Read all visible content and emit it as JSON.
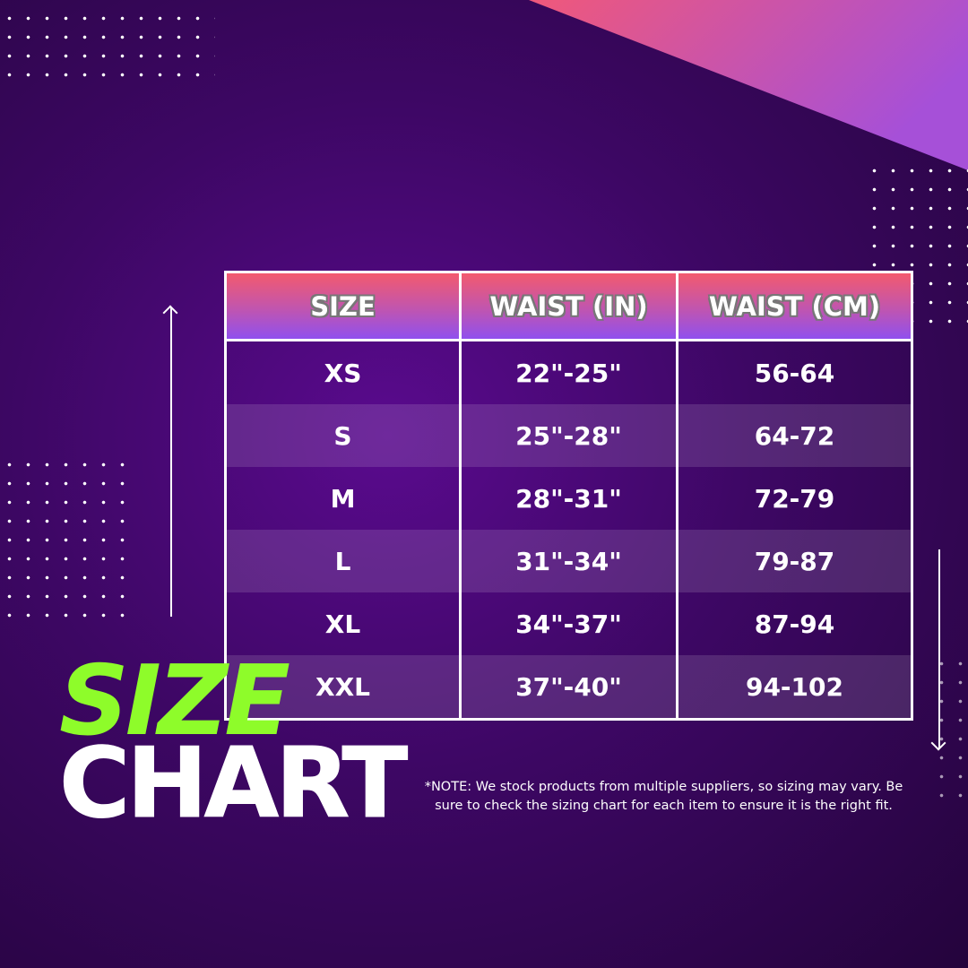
{
  "colors": {
    "accent_green": "#8efc2a",
    "header_top": "#f35a6e",
    "header_bottom": "#9050ee",
    "background": "#3d0764"
  },
  "title": {
    "line1": "SIZE",
    "line2": "CHART"
  },
  "table": {
    "headers": [
      "SIZE",
      "WAIST (IN)",
      "WAIST (CM)"
    ],
    "rows": [
      [
        "XS",
        "22\"-25\"",
        "56-64"
      ],
      [
        "S",
        "25\"-28\"",
        "64-72"
      ],
      [
        "M",
        "28\"-31\"",
        "72-79"
      ],
      [
        "L",
        "31\"-34\"",
        "79-87"
      ],
      [
        "XL",
        "34\"-37\"",
        "87-94"
      ],
      [
        "XXL",
        "37\"-40\"",
        "94-102"
      ]
    ]
  },
  "note": "*NOTE: We stock products from multiple suppliers, so sizing may vary. Be sure to check the sizing chart for  each item to ensure it is the right fit.",
  "icons": {
    "left_arrow": "arrow-up-icon",
    "right_arrow": "arrow-down-icon"
  }
}
